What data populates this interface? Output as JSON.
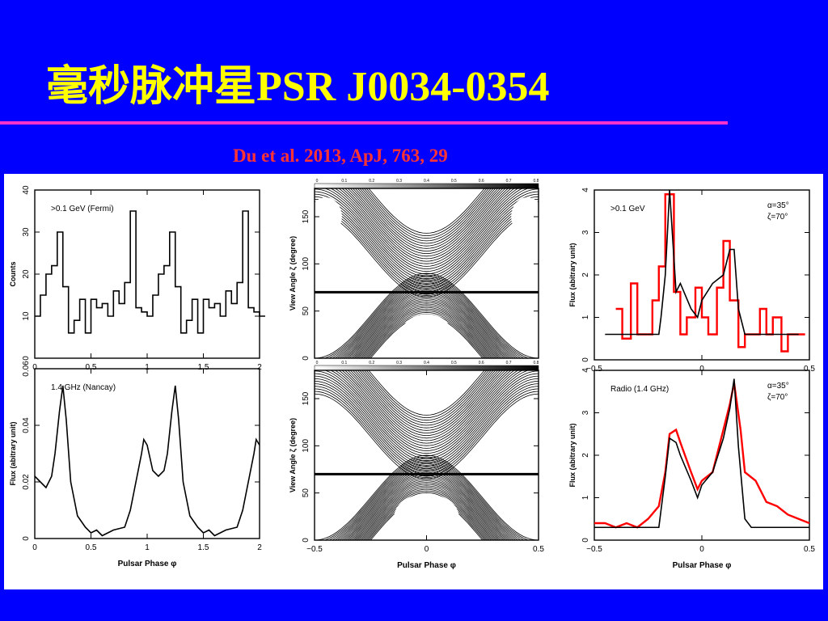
{
  "slide": {
    "title": "毫秒脉冲星PSR J0034-0354",
    "citation": "Du et al. 2013, ApJ, 763, 29"
  },
  "colors": {
    "background": "#0000ff",
    "title": "#ffff00",
    "rule": "#ff33cc",
    "citation": "#ff3333",
    "model": "#ff0000"
  },
  "chart_data": [
    {
      "id": "fermi",
      "type": "line",
      "ylabel": "Counts",
      "annotation": ">0.1 GeV (Fermi)",
      "xlim": [
        0,
        2
      ],
      "ylim": [
        0,
        40
      ],
      "xticks": [
        "0",
        "0.5",
        "1",
        "1.5",
        "2"
      ],
      "yticks": [
        "0",
        "10",
        "20",
        "30",
        "40"
      ],
      "series": [
        {
          "step": true,
          "x": [
            0,
            0.05,
            0.1,
            0.15,
            0.2,
            0.25,
            0.3,
            0.35,
            0.4,
            0.45,
            0.5,
            0.55,
            0.6,
            0.65,
            0.7,
            0.75,
            0.8,
            0.85,
            0.9,
            0.95,
            1.0,
            1.05,
            1.1,
            1.15,
            1.2,
            1.25,
            1.3,
            1.35,
            1.4,
            1.45,
            1.5,
            1.55,
            1.6,
            1.65,
            1.7,
            1.75,
            1.8,
            1.85,
            1.9,
            1.95,
            2.0
          ],
          "y": [
            10,
            15,
            20,
            22,
            30,
            17,
            6,
            9,
            14,
            6,
            14,
            12,
            13,
            10,
            16,
            13,
            18,
            35,
            12,
            11,
            10,
            15,
            20,
            22,
            30,
            17,
            6,
            9,
            14,
            6,
            14,
            12,
            13,
            10,
            16,
            13,
            18,
            35,
            12,
            11,
            10
          ]
        }
      ]
    },
    {
      "id": "nancay",
      "type": "line",
      "xlabel": "Pulsar Phase φ",
      "ylabel": "Flux (abitrary unit)",
      "annotation": "1.4 GHz (Nancay)",
      "xlim": [
        0,
        2
      ],
      "ylim": [
        0,
        0.06
      ],
      "xticks": [
        "0",
        "0.5",
        "1",
        "1.5",
        "2"
      ],
      "yticks": [
        "0",
        "0.02",
        "0.04",
        "0.06"
      ],
      "series": [
        {
          "x": [
            0,
            0.05,
            0.1,
            0.15,
            0.18,
            0.22,
            0.25,
            0.28,
            0.32,
            0.38,
            0.45,
            0.5,
            0.55,
            0.6,
            0.7,
            0.8,
            0.85,
            0.9,
            0.95,
            0.97,
            1.0,
            1.05,
            1.1,
            1.15,
            1.18,
            1.22,
            1.25,
            1.28,
            1.32,
            1.38,
            1.45,
            1.5,
            1.55,
            1.6,
            1.7,
            1.8,
            1.85,
            1.9,
            1.95,
            1.97,
            2.0
          ],
          "y": [
            0.022,
            0.02,
            0.018,
            0.022,
            0.03,
            0.045,
            0.054,
            0.042,
            0.02,
            0.008,
            0.004,
            0.002,
            0.003,
            0.001,
            0.003,
            0.004,
            0.01,
            0.02,
            0.03,
            0.035,
            0.033,
            0.024,
            0.022,
            0.024,
            0.03,
            0.045,
            0.054,
            0.042,
            0.02,
            0.008,
            0.004,
            0.002,
            0.003,
            0.001,
            0.003,
            0.004,
            0.01,
            0.02,
            0.03,
            0.035,
            0.033
          ]
        }
      ]
    },
    {
      "id": "gamma-model",
      "type": "line",
      "ylabel": "Flux (abitrary unit)",
      "annotation": ">0.1 GeV",
      "params": [
        "α=35°",
        "ζ=70°"
      ],
      "xlim": [
        -0.5,
        0.5
      ],
      "ylim": [
        0,
        4
      ],
      "xticks": [
        "−0.5",
        "0",
        "0.5"
      ],
      "yticks": [
        "0",
        "1",
        "2",
        "3",
        "4"
      ],
      "series": [
        {
          "color": "#ff0000",
          "step": true,
          "x": [
            -0.4,
            -0.37,
            -0.33,
            -0.3,
            -0.27,
            -0.23,
            -0.2,
            -0.17,
            -0.13,
            -0.1,
            -0.07,
            -0.03,
            0,
            0.03,
            0.07,
            0.1,
            0.13,
            0.17,
            0.2,
            0.23,
            0.27,
            0.3,
            0.33,
            0.37,
            0.4,
            0.45
          ],
          "y": [
            1.2,
            0.5,
            1.8,
            0.6,
            0.6,
            1.4,
            2.2,
            3.9,
            1.6,
            0.6,
            1.0,
            1.7,
            1.0,
            0.6,
            1.7,
            2.8,
            1.4,
            0.3,
            0.6,
            0.6,
            1.2,
            0.6,
            1.0,
            0.2,
            0.6,
            0.6
          ]
        },
        {
          "color": "#000000",
          "x": [
            -0.45,
            -0.2,
            -0.19,
            -0.17,
            -0.15,
            -0.12,
            -0.1,
            -0.05,
            -0.02,
            0.0,
            0.05,
            0.1,
            0.13,
            0.15,
            0.17,
            0.2,
            0.45
          ],
          "y": [
            0.6,
            0.6,
            1.0,
            2.0,
            4.0,
            1.6,
            1.8,
            1.2,
            1.0,
            1.4,
            1.8,
            2.0,
            2.6,
            2.6,
            1.2,
            0.6,
            0.6
          ]
        }
      ]
    },
    {
      "id": "radio-model",
      "type": "line",
      "xlabel": "Pulsar Phase φ",
      "ylabel": "Flux (abitrary unit)",
      "annotation": "Radio (1.4 GHz)",
      "params": [
        "α=35°",
        "ζ=70°"
      ],
      "xlim": [
        -0.5,
        0.5
      ],
      "ylim": [
        0,
        4
      ],
      "xticks": [
        "−0.5",
        "0",
        "0.5"
      ],
      "yticks": [
        "0",
        "1",
        "2",
        "3",
        "4"
      ],
      "series": [
        {
          "color": "#ff0000",
          "x": [
            -0.5,
            -0.45,
            -0.4,
            -0.35,
            -0.3,
            -0.25,
            -0.2,
            -0.17,
            -0.15,
            -0.12,
            -0.1,
            -0.05,
            -0.02,
            0,
            0.05,
            0.1,
            0.13,
            0.15,
            0.18,
            0.2,
            0.25,
            0.3,
            0.35,
            0.4,
            0.45,
            0.5
          ],
          "y": [
            0.4,
            0.4,
            0.3,
            0.4,
            0.3,
            0.5,
            0.8,
            1.6,
            2.5,
            2.6,
            2.3,
            1.6,
            1.2,
            1.4,
            1.6,
            2.6,
            3.2,
            3.7,
            2.6,
            1.6,
            1.4,
            0.9,
            0.8,
            0.6,
            0.5,
            0.4
          ]
        },
        {
          "color": "#000000",
          "x": [
            -0.5,
            -0.2,
            -0.17,
            -0.15,
            -0.12,
            -0.1,
            -0.05,
            -0.02,
            0,
            0.05,
            0.1,
            0.13,
            0.15,
            0.17,
            0.2,
            0.23,
            0.5
          ],
          "y": [
            0.3,
            0.3,
            1.5,
            2.4,
            2.3,
            2.0,
            1.4,
            1.0,
            1.3,
            1.6,
            2.4,
            3.1,
            3.8,
            2.2,
            0.5,
            0.3,
            0.3
          ]
        }
      ]
    },
    {
      "id": "map-top",
      "type": "heatmap",
      "ylabel": "View Angle ζ (degree)",
      "colorbar_ticks": [
        "0",
        "0.1",
        "0.2",
        "0.3",
        "0.4",
        "0.5",
        "0.6",
        "0.7",
        "0.8"
      ],
      "xlim": [
        -0.5,
        0.5
      ],
      "ylim": [
        0,
        180
      ],
      "yticks": [
        "0",
        "50",
        "100",
        "150"
      ],
      "view_angle_line": 70
    },
    {
      "id": "map-bottom",
      "type": "heatmap",
      "xlabel": "Pulsar Phase φ",
      "ylabel": "View Angle ζ (degree)",
      "colorbar_ticks": [
        "0",
        "0.1",
        "0.2",
        "0.3",
        "0.4",
        "0.5",
        "0.6",
        "0.7",
        "0.8"
      ],
      "xlim": [
        -0.5,
        0.5
      ],
      "ylim": [
        0,
        180
      ],
      "xticks": [
        "−0.5",
        "0",
        "0.5"
      ],
      "yticks": [
        "0",
        "50",
        "100",
        "150"
      ],
      "view_angle_line": 70
    }
  ]
}
